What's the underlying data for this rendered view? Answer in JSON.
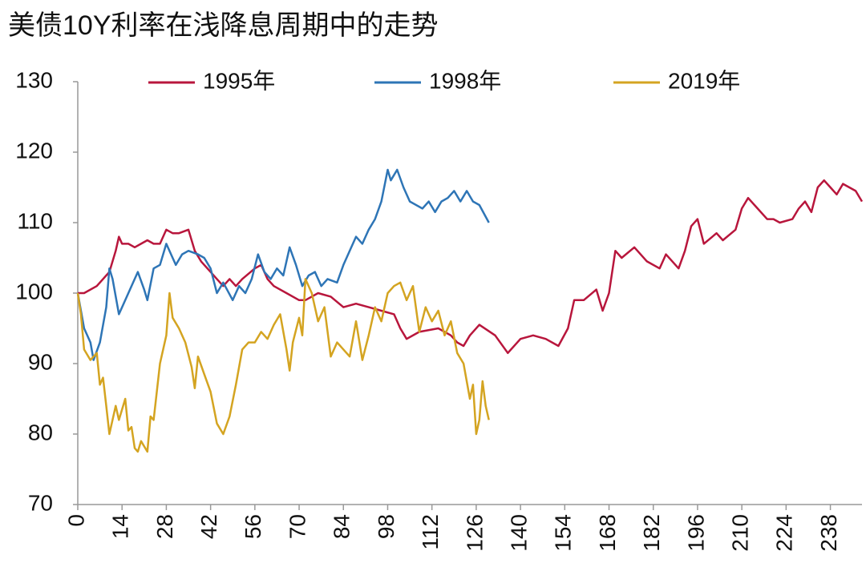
{
  "chart_data": {
    "type": "line",
    "title": "美债10Y利率在浅降息周期中的走势",
    "xlim": [
      0,
      248
    ],
    "xticks": [
      0,
      14,
      28,
      42,
      56,
      70,
      84,
      98,
      112,
      126,
      140,
      154,
      168,
      182,
      196,
      210,
      224,
      238
    ],
    "ylim": [
      70,
      130
    ],
    "yticks": [
      70,
      80,
      90,
      100,
      110,
      120,
      130
    ],
    "grid": false,
    "legend": "top",
    "series": [
      {
        "name": "1995年",
        "color": "#b8163c",
        "x": [
          0,
          2,
          6,
          10,
          12,
          13,
          14,
          16,
          18,
          20,
          22,
          24,
          26,
          28,
          30,
          32,
          35,
          37,
          39,
          42,
          44,
          46,
          48,
          50,
          52,
          56,
          58,
          60,
          62,
          66,
          70,
          72,
          76,
          80,
          84,
          88,
          92,
          96,
          100,
          102,
          104,
          108,
          114,
          118,
          120,
          122,
          124,
          127,
          132,
          136,
          140,
          144,
          148,
          152,
          155,
          157,
          160,
          164,
          166,
          168,
          170,
          172,
          176,
          180,
          184,
          186,
          190,
          192,
          194,
          196,
          198,
          202,
          204,
          208,
          210,
          212,
          214,
          218,
          220,
          222,
          226,
          228,
          230,
          232,
          234,
          236,
          238,
          240,
          242,
          246,
          248
        ],
        "values": [
          100,
          100,
          101,
          103,
          106,
          108,
          107,
          107,
          106.5,
          107,
          107.5,
          107,
          107,
          109,
          108.5,
          108.5,
          109,
          106,
          104.5,
          103,
          102,
          101,
          102,
          101,
          102,
          103.5,
          104,
          102,
          101,
          100,
          99,
          99,
          100,
          99.5,
          98,
          98.5,
          98,
          97.5,
          97,
          95,
          93.5,
          94.5,
          95,
          94,
          93,
          92.5,
          94,
          95.5,
          94,
          91.5,
          93.5,
          94,
          93.5,
          92.5,
          95,
          99,
          99,
          100.5,
          97.5,
          100,
          106,
          105,
          106.5,
          104.5,
          103.5,
          105.5,
          103.5,
          106,
          109.5,
          110.5,
          107,
          108.5,
          107.5,
          109,
          112,
          113.5,
          112.5,
          110.5,
          110.5,
          110,
          110.5,
          112,
          113,
          111.5,
          115,
          116,
          115,
          114,
          115.5,
          114.5,
          113
        ]
      },
      {
        "name": "1998年",
        "color": "#2e75b6",
        "x": [
          0,
          2,
          4,
          5,
          7,
          9,
          10,
          11,
          13,
          15,
          17,
          19,
          21,
          22,
          24,
          26,
          28,
          30,
          31,
          33,
          35,
          38,
          40,
          42,
          44,
          46,
          49,
          51,
          53,
          55,
          57,
          59,
          61,
          63,
          65,
          67,
          69,
          71,
          73,
          75,
          77,
          79,
          82,
          84,
          86,
          88,
          90,
          92,
          94,
          96,
          98,
          99,
          101,
          103,
          105,
          109,
          111,
          113,
          115,
          117,
          119,
          121,
          123,
          125,
          127,
          130
        ],
        "values": [
          100,
          95,
          93,
          90.5,
          93,
          98,
          103.5,
          102,
          97,
          99,
          101,
          103,
          100.5,
          99,
          103.5,
          104,
          107,
          105,
          104,
          105.5,
          106,
          105.5,
          105,
          103.5,
          100,
          101.5,
          99,
          101,
          100,
          102,
          105.5,
          103,
          102,
          103.5,
          102.5,
          106.5,
          104,
          101,
          102.5,
          103,
          101,
          102,
          101.5,
          104,
          106,
          108,
          107,
          109,
          110.5,
          113,
          117.5,
          116,
          117.5,
          115,
          113,
          112,
          113,
          111.5,
          113,
          113.5,
          114.5,
          113,
          114.5,
          113,
          112.5,
          110
        ]
      },
      {
        "name": "2019年",
        "color": "#d4a421",
        "x": [
          0,
          1,
          2,
          4,
          6,
          7,
          8,
          9,
          10,
          12,
          13,
          15,
          16,
          17,
          18,
          19,
          20,
          22,
          23,
          24,
          26,
          28,
          29,
          30,
          32,
          34,
          36,
          37,
          38,
          40,
          42,
          44,
          46,
          48,
          50,
          52,
          54,
          56,
          58,
          60,
          62,
          64,
          66,
          67,
          68,
          70,
          71,
          72,
          74,
          76,
          78,
          80,
          82,
          84,
          86,
          88,
          90,
          92,
          94,
          96,
          98,
          100,
          102,
          104,
          106,
          108,
          110,
          112,
          114,
          116,
          118,
          120,
          122,
          124,
          125,
          126,
          127,
          128,
          129,
          130
        ],
        "values": [
          100,
          97,
          92,
          90.5,
          91.5,
          87,
          88,
          84,
          80,
          84,
          82,
          85,
          80.5,
          81,
          78,
          77.5,
          79,
          77.5,
          82.5,
          82,
          90,
          94,
          100,
          96.5,
          95,
          93,
          89.5,
          86.5,
          91,
          88.5,
          86,
          81.5,
          80,
          82.5,
          87,
          92,
          93,
          93,
          94.5,
          93.5,
          95.5,
          97,
          92,
          89,
          93,
          96.5,
          94,
          102,
          100,
          96,
          98,
          91,
          93,
          92,
          91,
          96,
          90.5,
          94,
          98,
          96,
          100,
          101,
          101.5,
          99,
          101,
          94.5,
          98,
          96,
          97.5,
          94,
          96,
          91.5,
          90,
          85,
          87,
          80,
          82,
          87.5,
          84,
          82
        ]
      }
    ]
  }
}
